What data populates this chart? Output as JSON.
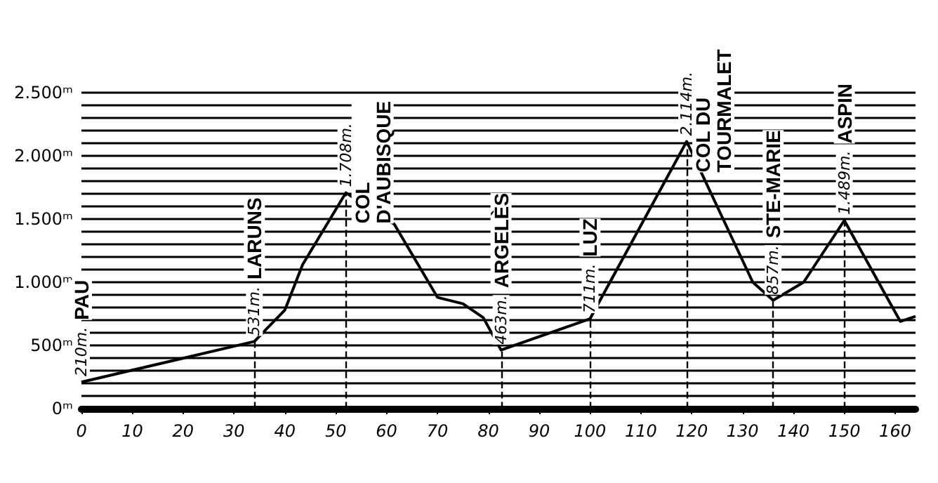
{
  "chart_data": {
    "type": "line",
    "x": [
      0,
      34,
      40,
      43.5,
      52,
      61.5,
      70,
      75,
      79,
      82.5,
      100,
      119,
      132,
      136,
      142,
      150,
      161,
      164
    ],
    "series": [
      {
        "color": "#000000",
        "values": [
          210,
          531,
          780,
          1140,
          1708,
          1460,
          880,
          830,
          720,
          463,
          711,
          2114,
          1000,
          857,
          1000,
          1489,
          690,
          730
        ]
      }
    ],
    "xlim": [
      0,
      164
    ],
    "xticks": [
      0,
      10,
      20,
      30,
      40,
      50,
      60,
      70,
      80,
      90,
      100,
      110,
      120,
      130,
      140,
      150,
      160
    ],
    "ylim": [
      0,
      2500
    ],
    "yticks": [
      {
        "value": 0,
        "label": "0ᵐ"
      },
      {
        "value": 100,
        "label": null
      },
      {
        "value": 200,
        "label": null
      },
      {
        "value": 300,
        "label": null
      },
      {
        "value": 400,
        "label": null
      },
      {
        "value": 500,
        "label": "500ᵐ"
      },
      {
        "value": 600,
        "label": null
      },
      {
        "value": 700,
        "label": null
      },
      {
        "value": 800,
        "label": null
      },
      {
        "value": 900,
        "label": null
      },
      {
        "value": 1000,
        "label": "1.000ᵐ"
      },
      {
        "value": 1100,
        "label": null
      },
      {
        "value": 1200,
        "label": null
      },
      {
        "value": 1300,
        "label": null
      },
      {
        "value": 1400,
        "label": null
      },
      {
        "value": 1500,
        "label": "1.500ᵐ"
      },
      {
        "value": 1600,
        "label": null
      },
      {
        "value": 1700,
        "label": null
      },
      {
        "value": 1800,
        "label": null
      },
      {
        "value": 1900,
        "label": null
      },
      {
        "value": 2000,
        "label": "2.000ᵐ"
      },
      {
        "value": 2100,
        "label": null
      },
      {
        "value": 2200,
        "label": null
      },
      {
        "value": 2300,
        "label": null
      },
      {
        "value": 2400,
        "label": null
      },
      {
        "value": 2500,
        "label": "2.500ᵐ"
      }
    ],
    "grid": "y",
    "marker": "none",
    "line_style": "solid",
    "ref_lines": [
      {
        "axis": "x",
        "value": 34,
        "line_style": "dashed"
      },
      {
        "axis": "x",
        "value": 52,
        "line_style": "dashed"
      },
      {
        "axis": "x",
        "value": 82.5,
        "line_style": "dashed"
      },
      {
        "axis": "x",
        "value": 100,
        "line_style": "dashed"
      },
      {
        "axis": "x",
        "value": 119,
        "line_style": "dashed"
      },
      {
        "axis": "x",
        "value": 136,
        "line_style": "dashed"
      },
      {
        "axis": "x",
        "value": 150,
        "line_style": "dashed"
      }
    ],
    "annotations": [
      {
        "text": "210m.",
        "x": 0,
        "y": 210
      },
      "PAU",
      {
        "text": "531m.",
        "x": 34,
        "y": 531
      },
      "LARUNS",
      {
        "text": "1.708m.",
        "x": 52,
        "y": 1708
      },
      "COL\nD'AUBISQUE",
      {
        "text": "463m.",
        "x": 82.5,
        "y": 463
      },
      "ARGELÈS",
      {
        "text": "711m.",
        "x": 100,
        "y": 711
      },
      "LUZ",
      {
        "text": "2.114m.",
        "x": 119,
        "y": 2114
      },
      "COL DU\nTOURMALET",
      {
        "text": "857m.",
        "x": 136,
        "y": 857
      },
      "STE-MARIE",
      {
        "text": "1.489m.",
        "x": 150,
        "y": 1489
      },
      "ASPIN"
    ]
  }
}
